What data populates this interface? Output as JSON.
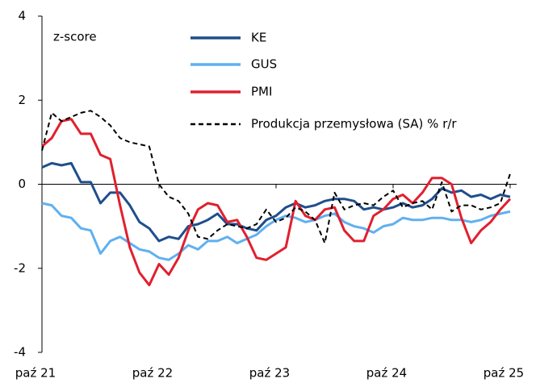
{
  "chart_data": {
    "type": "line",
    "annotations": [
      "z-score"
    ],
    "categories": [
      "paź 21",
      null,
      null,
      null,
      null,
      null,
      null,
      null,
      null,
      null,
      null,
      null,
      "paź 22",
      null,
      null,
      null,
      null,
      null,
      null,
      null,
      null,
      null,
      null,
      null,
      "paź 23",
      null,
      null,
      null,
      null,
      null,
      null,
      null,
      null,
      null,
      null,
      null,
      "paź 24",
      null,
      null,
      null,
      null,
      null,
      null,
      null,
      null,
      null,
      null,
      null,
      "paź 25"
    ],
    "ylim": [
      -4,
      4
    ],
    "yticks": [
      -4,
      -2,
      0,
      2,
      4
    ],
    "series": [
      {
        "name": "KE",
        "color": "#1f4e8c",
        "dash": false,
        "values": [
          0.4,
          0.5,
          0.45,
          0.5,
          0.05,
          0.05,
          -0.45,
          -0.2,
          -0.2,
          -0.5,
          -0.9,
          -1.05,
          -1.35,
          -1.25,
          -1.3,
          -1.0,
          -0.95,
          -0.85,
          -0.7,
          -0.95,
          -0.95,
          -1.05,
          -1.1,
          -0.85,
          -0.75,
          -0.55,
          -0.45,
          -0.55,
          -0.5,
          -0.4,
          -0.35,
          -0.35,
          -0.4,
          -0.6,
          -0.55,
          -0.6,
          -0.55,
          -0.45,
          -0.55,
          -0.5,
          -0.35,
          -0.1,
          -0.2,
          -0.15,
          -0.3,
          -0.25,
          -0.35,
          -0.25,
          -0.3
        ]
      },
      {
        "name": "GUS",
        "color": "#5fb0f0",
        "dash": false,
        "values": [
          -0.45,
          -0.5,
          -0.75,
          -0.8,
          -1.05,
          -1.1,
          -1.65,
          -1.35,
          -1.25,
          -1.4,
          -1.55,
          -1.6,
          -1.75,
          -1.8,
          -1.65,
          -1.45,
          -1.55,
          -1.35,
          -1.35,
          -1.25,
          -1.4,
          -1.3,
          -1.2,
          -1.0,
          -0.85,
          -0.75,
          -0.8,
          -0.9,
          -0.85,
          -0.75,
          -0.7,
          -0.9,
          -1.0,
          -1.05,
          -1.15,
          -1.0,
          -0.95,
          -0.8,
          -0.85,
          -0.85,
          -0.8,
          -0.8,
          -0.85,
          -0.85,
          -0.9,
          -0.85,
          -0.75,
          -0.7,
          -0.65
        ]
      },
      {
        "name": "PMI",
        "color": "#e0202e",
        "dash": false,
        "values": [
          0.9,
          1.1,
          1.5,
          1.55,
          1.2,
          1.2,
          0.7,
          0.6,
          -0.5,
          -1.5,
          -2.1,
          -2.4,
          -1.9,
          -2.15,
          -1.75,
          -1.1,
          -0.6,
          -0.45,
          -0.5,
          -0.9,
          -0.85,
          -1.25,
          -1.75,
          -1.8,
          -1.65,
          -1.5,
          -0.4,
          -0.75,
          -0.85,
          -0.6,
          -0.55,
          -1.1,
          -1.35,
          -1.35,
          -0.75,
          -0.6,
          -0.35,
          -0.25,
          -0.45,
          -0.2,
          0.15,
          0.15,
          0.0,
          -0.8,
          -1.4,
          -1.1,
          -0.9,
          -0.6,
          -0.35
        ]
      },
      {
        "name": "Produkcja przemysłowa (SA) % r/r",
        "color": "#000000",
        "dash": true,
        "values": [
          0.8,
          1.7,
          1.5,
          1.6,
          1.7,
          1.75,
          1.6,
          1.4,
          1.1,
          1.0,
          0.95,
          0.9,
          0.0,
          -0.3,
          -0.4,
          -0.7,
          -1.25,
          -1.3,
          -1.1,
          -0.95,
          -1.0,
          -1.05,
          -0.95,
          -0.6,
          -0.9,
          -0.8,
          -0.55,
          -0.65,
          -0.85,
          -1.4,
          -0.2,
          -0.6,
          -0.5,
          -0.45,
          -0.5,
          -0.3,
          -0.15,
          -0.55,
          -0.45,
          -0.4,
          -0.6,
          0.05,
          -0.65,
          -0.5,
          -0.5,
          -0.6,
          -0.55,
          -0.45,
          0.25
        ]
      }
    ]
  }
}
